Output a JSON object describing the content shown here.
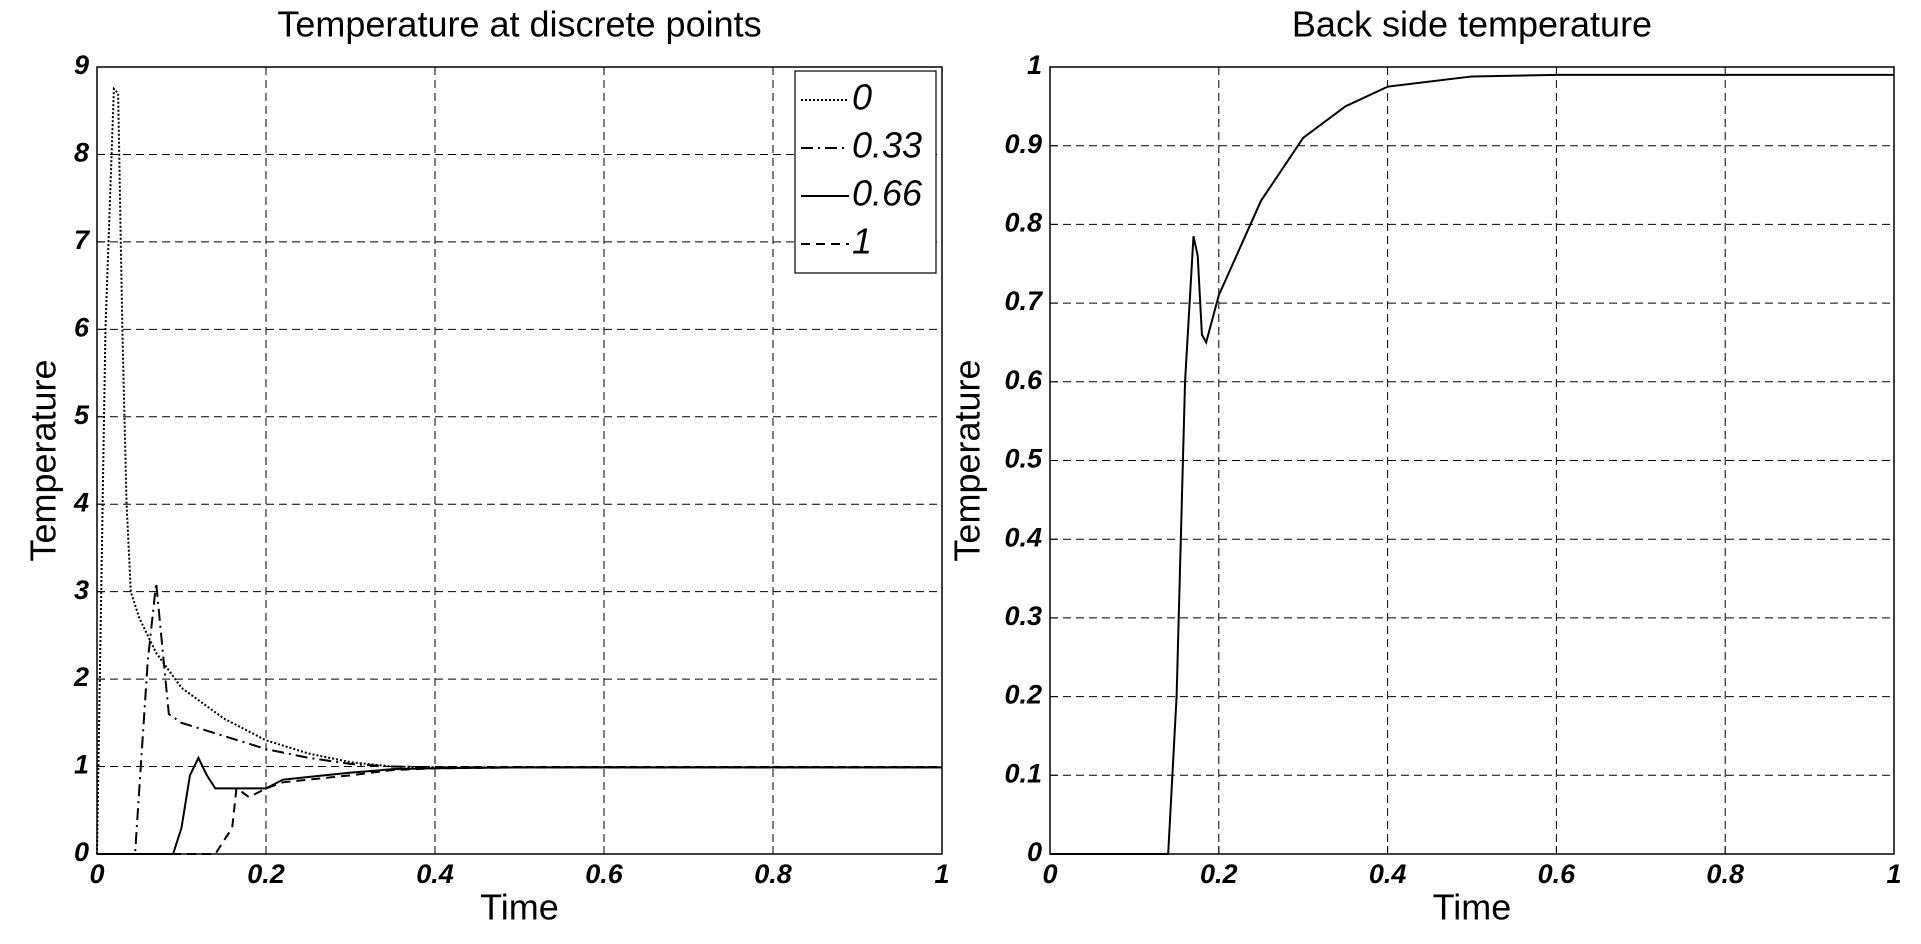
{
  "chart_data": [
    {
      "type": "line",
      "title": "Temperature at discrete points",
      "xlabel": "Time",
      "ylabel": "Temperature",
      "xlim": [
        0,
        1
      ],
      "ylim": [
        0,
        9
      ],
      "xticks": [
        0,
        0.2,
        0.4,
        0.6,
        0.8,
        1
      ],
      "yticks": [
        0,
        1,
        2,
        3,
        4,
        5,
        6,
        7,
        8,
        9
      ],
      "grid": true,
      "legend": "upper right",
      "series": [
        {
          "name": "0",
          "color": "#000000",
          "style": "dotted",
          "x": [
            0,
            0.01,
            0.02,
            0.025,
            0.03,
            0.035,
            0.04,
            0.05,
            0.07,
            0.1,
            0.15,
            0.2,
            0.25,
            0.3,
            0.35,
            0.4,
            0.5,
            1
          ],
          "values": [
            0,
            6,
            8.75,
            8.7,
            6,
            4,
            3.0,
            2.7,
            2.3,
            1.9,
            1.55,
            1.3,
            1.15,
            1.05,
            1.0,
            0.99,
            0.99,
            0.99
          ]
        },
        {
          "name": "0.33",
          "color": "#000000",
          "style": "dashdot",
          "x": [
            0,
            0.045,
            0.06,
            0.07,
            0.085,
            0.1,
            0.15,
            0.2,
            0.25,
            0.3,
            0.35,
            0.4,
            0.5,
            1
          ],
          "values": [
            0,
            0,
            2.2,
            3.1,
            1.6,
            1.5,
            1.35,
            1.2,
            1.1,
            1.03,
            1.0,
            0.99,
            0.99,
            0.99
          ]
        },
        {
          "name": "0.66",
          "color": "#000000",
          "style": "solid",
          "x": [
            0,
            0.09,
            0.1,
            0.11,
            0.12,
            0.13,
            0.14,
            0.2,
            0.22,
            0.25,
            0.3,
            0.35,
            0.4,
            0.5,
            1
          ],
          "values": [
            0,
            0,
            0.3,
            0.9,
            1.1,
            0.9,
            0.75,
            0.75,
            0.85,
            0.88,
            0.93,
            0.97,
            0.98,
            0.99,
            0.99
          ]
        },
        {
          "name": "1",
          "color": "#000000",
          "style": "dashed",
          "x": [
            0,
            0.14,
            0.16,
            0.165,
            0.17,
            0.18,
            0.2,
            0.22,
            0.3,
            0.35,
            0.4,
            0.5,
            1
          ],
          "values": [
            0,
            0,
            0.3,
            0.75,
            0.72,
            0.65,
            0.75,
            0.82,
            0.9,
            0.96,
            0.98,
            0.99,
            0.99
          ]
        }
      ]
    },
    {
      "type": "line",
      "title": "Back side temperature",
      "xlabel": "Time",
      "ylabel": "Temperature",
      "xlim": [
        0,
        1
      ],
      "ylim": [
        0,
        1
      ],
      "xticks": [
        0,
        0.2,
        0.4,
        0.6,
        0.8,
        1
      ],
      "yticks": [
        0,
        0.1,
        0.2,
        0.3,
        0.4,
        0.5,
        0.6,
        0.7,
        0.8,
        0.9,
        1
      ],
      "grid": true,
      "series": [
        {
          "color": "#000000",
          "style": "solid",
          "x": [
            0,
            0.14,
            0.15,
            0.16,
            0.17,
            0.175,
            0.18,
            0.185,
            0.2,
            0.25,
            0.3,
            0.35,
            0.4,
            0.5,
            0.6,
            1
          ],
          "values": [
            0,
            0,
            0.2,
            0.6,
            0.785,
            0.76,
            0.66,
            0.65,
            0.71,
            0.83,
            0.91,
            0.95,
            0.975,
            0.988,
            0.99,
            0.99
          ]
        }
      ]
    }
  ]
}
